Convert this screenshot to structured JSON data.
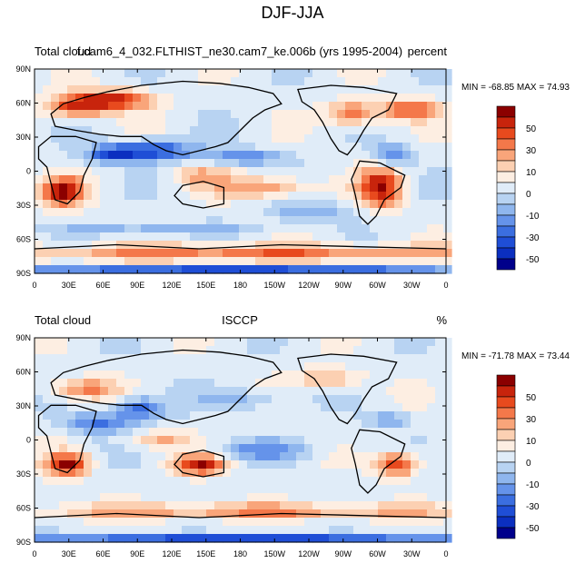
{
  "title": "DJF-JJA",
  "panels": [
    {
      "left_label": "Total cloud",
      "center_label": "f.cam6_4_032.FLTHIST_ne30.cam7_ke.006b (yrs 1995-2004)",
      "right_label": "percent",
      "min_label": "MIN = -68.85",
      "max_label": "MAX =  74.93",
      "min": -68.85,
      "max": 74.93
    },
    {
      "left_label": "Total cloud",
      "center_label": "ISCCP",
      "right_label": "%",
      "min_label": "MIN = -71.78",
      "max_label": "MAX =  73.44",
      "min": -71.78,
      "max": 73.44
    }
  ],
  "lat_labels": [
    "90N",
    "60N",
    "30N",
    "0",
    "30S",
    "60S",
    "90S"
  ],
  "lon_labels": [
    "0",
    "30E",
    "60E",
    "90E",
    "120E",
    "150E",
    "180",
    "150W",
    "120W",
    "90W",
    "60W",
    "30W",
    "0"
  ],
  "colorbar": {
    "labels": [
      "50",
      "30",
      "10",
      "0",
      "-10",
      "-30",
      "-50"
    ],
    "colors": [
      "#8b0000",
      "#c8240c",
      "#e84a1e",
      "#f4784a",
      "#f9a57a",
      "#fcd0b2",
      "#fdeee2",
      "#e0ecf8",
      "#b8d3f2",
      "#8fb6ee",
      "#6593ea",
      "#3b6ee0",
      "#1f4ed6",
      "#0b2fc0",
      "#00008b"
    ]
  }
}
